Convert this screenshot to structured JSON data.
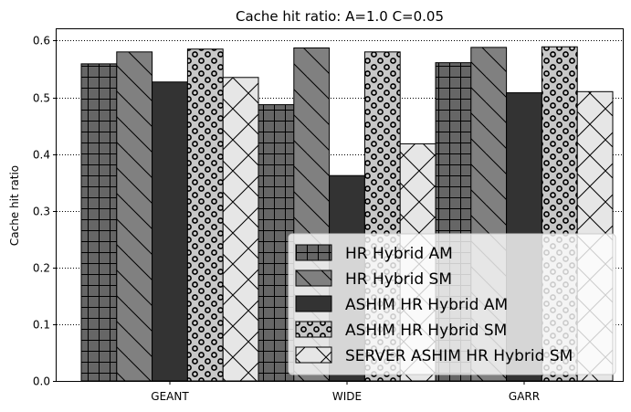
{
  "chart_data": {
    "type": "bar",
    "title": "Cache hit ratio: A=1.0 C=0.05",
    "xlabel": "",
    "ylabel": "Cache hit ratio",
    "categories": [
      "GEANT",
      "WIDE",
      "GARR"
    ],
    "ylim": [
      0,
      0.62
    ],
    "yticks": [
      0.0,
      0.1,
      0.2,
      0.3,
      0.4,
      0.5,
      0.6
    ],
    "ytick_labels": [
      "0.0",
      "0.1",
      "0.2",
      "0.3",
      "0.4",
      "0.5",
      "0.6"
    ],
    "grid": "y-dotted",
    "legend_position": "lower-right",
    "series": [
      {
        "name": "HR Hybrid AM",
        "values": [
          0.559,
          0.487,
          0.561
        ],
        "color": "#666666",
        "pattern": "grid"
      },
      {
        "name": "HR Hybrid SM",
        "values": [
          0.58,
          0.587,
          0.588
        ],
        "color": "#808080",
        "pattern": "diagonal"
      },
      {
        "name": "ASHIM HR Hybrid AM",
        "values": [
          0.527,
          0.362,
          0.508
        ],
        "color": "#333333",
        "pattern": "solid"
      },
      {
        "name": "ASHIM HR Hybrid SM",
        "values": [
          0.585,
          0.58,
          0.589
        ],
        "color": "#c8c8c8",
        "pattern": "circles"
      },
      {
        "name": "SERVER ASHIM HR Hybrid SM",
        "values": [
          0.535,
          0.418,
          0.51
        ],
        "color": "#e6e6e6",
        "pattern": "crosshatch"
      }
    ]
  }
}
